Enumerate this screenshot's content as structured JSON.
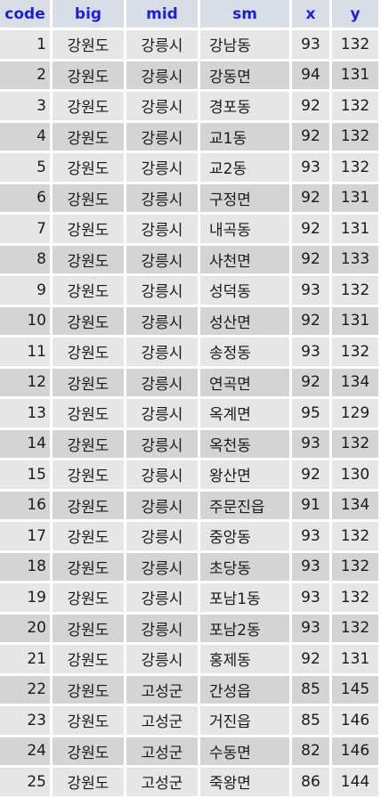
{
  "columns": [
    "code",
    "big",
    "mid",
    "sm",
    "x",
    "y"
  ],
  "rows": [
    [
      "1",
      "강원도",
      "강릉시",
      "강남동",
      "93",
      "132"
    ],
    [
      "2",
      "강원도",
      "강릉시",
      "강동면",
      "94",
      "131"
    ],
    [
      "3",
      "강원도",
      "강릉시",
      "경포동",
      "92",
      "132"
    ],
    [
      "4",
      "강원도",
      "강릉시",
      "교1동",
      "92",
      "132"
    ],
    [
      "5",
      "강원도",
      "강릉시",
      "교2동",
      "93",
      "132"
    ],
    [
      "6",
      "강원도",
      "강릉시",
      "구정면",
      "92",
      "131"
    ],
    [
      "7",
      "강원도",
      "강릉시",
      "내곡동",
      "92",
      "131"
    ],
    [
      "8",
      "강원도",
      "강릉시",
      "사천면",
      "92",
      "133"
    ],
    [
      "9",
      "강원도",
      "강릉시",
      "성덕동",
      "93",
      "132"
    ],
    [
      "10",
      "강원도",
      "강릉시",
      "성산면",
      "92",
      "131"
    ],
    [
      "11",
      "강원도",
      "강릉시",
      "송정동",
      "93",
      "132"
    ],
    [
      "12",
      "강원도",
      "강릉시",
      "연곡면",
      "92",
      "134"
    ],
    [
      "13",
      "강원도",
      "강릉시",
      "옥계면",
      "95",
      "129"
    ],
    [
      "14",
      "강원도",
      "강릉시",
      "옥천동",
      "93",
      "132"
    ],
    [
      "15",
      "강원도",
      "강릉시",
      "왕산면",
      "92",
      "130"
    ],
    [
      "16",
      "강원도",
      "강릉시",
      "주문진읍",
      "91",
      "134"
    ],
    [
      "17",
      "강원도",
      "강릉시",
      "중앙동",
      "93",
      "132"
    ],
    [
      "18",
      "강원도",
      "강릉시",
      "초당동",
      "93",
      "132"
    ],
    [
      "19",
      "강원도",
      "강릉시",
      "포남1동",
      "93",
      "132"
    ],
    [
      "20",
      "강원도",
      "강릉시",
      "포남2동",
      "93",
      "132"
    ],
    [
      "21",
      "강원도",
      "강릉시",
      "홍제동",
      "92",
      "131"
    ],
    [
      "22",
      "강원도",
      "고성군",
      "간성읍",
      "85",
      "145"
    ],
    [
      "23",
      "강원도",
      "고성군",
      "거진읍",
      "85",
      "146"
    ],
    [
      "24",
      "강원도",
      "고성군",
      "수동면",
      "82",
      "146"
    ],
    [
      "25",
      "강원도",
      "고성군",
      "죽왕면",
      "86",
      "144"
    ]
  ],
  "colors": {
    "header_bg": "#d9dee6",
    "header_text": "#1f1fd6",
    "row_odd": "#e6e6e6",
    "row_even": "#d4d4d4"
  }
}
